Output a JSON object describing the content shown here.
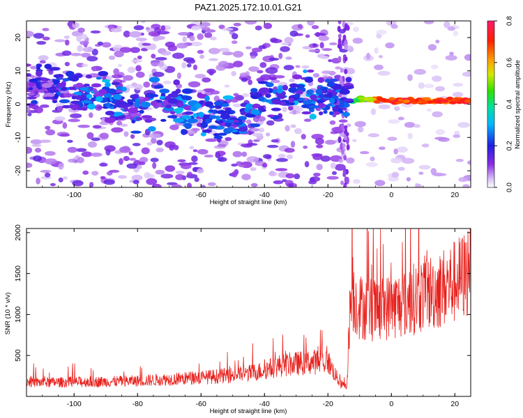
{
  "title": "PAZ1.2025.172.10.01.G21",
  "colors": {
    "snr_line": "#e8201c",
    "background": "#ffffff",
    "axis": "#000000"
  },
  "chart_data": [
    {
      "type": "heatmap",
      "xlabel": "Height of straight line (km)",
      "ylabel": "Frequency (Hz)",
      "xlim": [
        -115,
        25
      ],
      "ylim": [
        -25,
        25
      ],
      "x_ticks": [
        -100,
        -80,
        -60,
        -40,
        -20,
        0,
        20
      ],
      "y_ticks": [
        -20,
        -10,
        0,
        10,
        20
      ],
      "colorbar": {
        "label": "Normalized spectral amplitude",
        "range": [
          0.0,
          0.8
        ],
        "ticks": [
          0.0,
          0.2,
          0.4,
          0.6,
          0.8
        ],
        "colormap": "rainbow (white→purple→blue→cyan→green→yellow→orange→red→magenta)"
      },
      "description": "noisy scattered amplitude below -15 km; strong coherent line near 1 Hz above -12 km",
      "ridge": {
        "x": [
          -110,
          -100,
          -90,
          -80,
          -70,
          -60,
          -50,
          -40,
          -30,
          -20,
          -15,
          -10,
          -5,
          0,
          10,
          20,
          25
        ],
        "y": [
          6,
          3,
          2,
          -2,
          0,
          -2,
          -5,
          3,
          3,
          2,
          0,
          1.5,
          1.5,
          1,
          1,
          1,
          1
        ],
        "amplitude": [
          0.2,
          0.25,
          0.3,
          0.25,
          0.3,
          0.3,
          0.28,
          0.25,
          0.3,
          0.3,
          0.25,
          0.5,
          0.65,
          0.75,
          0.7,
          0.75,
          0.75
        ]
      }
    },
    {
      "type": "line",
      "xlabel": "Height of straight line (km)",
      "ylabel": "SNR (10 * v/v)",
      "xlim": [
        -115,
        25
      ],
      "ylim": [
        0,
        2050
      ],
      "x_ticks": [
        -100,
        -80,
        -60,
        -40,
        -20,
        0,
        20
      ],
      "y_ticks": [
        500,
        1000,
        1500,
        2000
      ],
      "series": [
        {
          "color": "#e8201c",
          "x": [
            -115,
            -110,
            -100,
            -90,
            -80,
            -70,
            -60,
            -50,
            -45,
            -40,
            -35,
            -30,
            -25,
            -20,
            -16,
            -14,
            -13,
            -12,
            -10,
            -5,
            0,
            5,
            10,
            15,
            20,
            24,
            25
          ],
          "y": [
            180,
            170,
            175,
            180,
            190,
            210,
            230,
            260,
            280,
            320,
            380,
            400,
            420,
            430,
            150,
            120,
            1150,
            1200,
            1100,
            1050,
            1100,
            1150,
            1250,
            1300,
            1400,
            1500,
            2000
          ]
        }
      ]
    }
  ]
}
